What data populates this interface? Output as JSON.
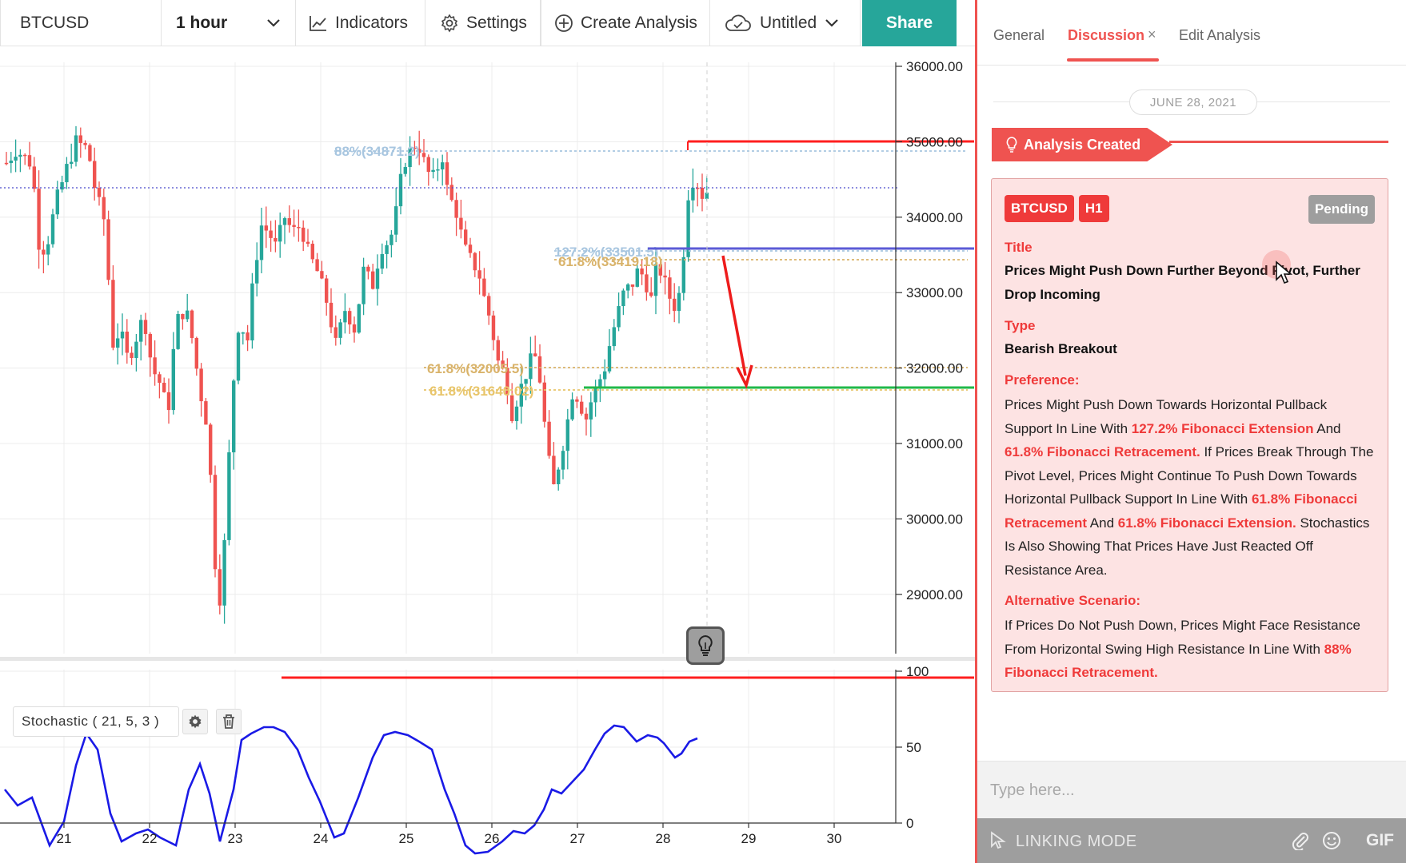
{
  "toolbar": {
    "symbol": "BTCUSD",
    "interval": "1 hour",
    "indicators": "Indicators",
    "settings": "Settings",
    "create_analysis": "Create Analysis",
    "layout_name": "Untitled",
    "share": "Share"
  },
  "chart": {
    "price_ticks": [
      "36000.00",
      "35000.00",
      "34000.00",
      "33000.00",
      "32000.00",
      "31000.00",
      "30000.00",
      "29000.00"
    ],
    "date_ticks": [
      "21",
      "22",
      "23",
      "24",
      "25",
      "26",
      "27",
      "28",
      "29",
      "30"
    ],
    "fib_labels": [
      "88%(34871.2)",
      "127.2%(33501.5)",
      "61.8%(33419.18)",
      "61.8%(32005.5)",
      "61.8%(31640.02)"
    ],
    "stochastic": {
      "label": "Stochastic ( 21, 5, 3 )",
      "ticks": [
        "100",
        "50",
        "0"
      ]
    },
    "colors": {
      "up": "#26a69a",
      "down": "#ef5350",
      "resistance": "#ff1f1f",
      "pivot": "#5b5bd6",
      "support": "#22b84a",
      "stoch_line": "#1a1ae6"
    }
  },
  "panel": {
    "tabs": [
      "General",
      "Discussion",
      "Edit Analysis"
    ],
    "close_glyph": "×",
    "date": "JUNE 28, 2021",
    "created": "Analysis Created",
    "badges": [
      "BTCUSD",
      "H1"
    ],
    "status": "Pending",
    "title_label": "Title",
    "title": "Prices Might Push Down Further Beyond Pivot, Further Drop Incoming",
    "type_label": "Type",
    "type": "Bearish Breakout",
    "preference_label": "Preference:",
    "preference": [
      "Prices Might Push Down Towards Horizontal Pullback Support In Line With ",
      "127.2% Fibonacci Extension",
      " And ",
      "61.8% Fibonacci Retracement.",
      " If Prices Break Through The Pivot Level, Prices Might Continue To Push Down Towards Horizontal Pullback Support In Line With ",
      "61.8% Fibonacci Retracement",
      " And ",
      "61.8% Fibonacci Extension.",
      " Stochastics Is Also Showing That Prices Have Just Reacted Off Resistance Area."
    ],
    "alternative_label": "Alternative Scenario:",
    "alternative": [
      "If Prices Do Not Push Down, Prices Might Face Resistance From Horizontal Swing High Resistance In Line With ",
      "88% Fibonacci Retracement."
    ],
    "input_placeholder": "Type here...",
    "linking_mode": "LINKING MODE",
    "gif": "GIF"
  }
}
